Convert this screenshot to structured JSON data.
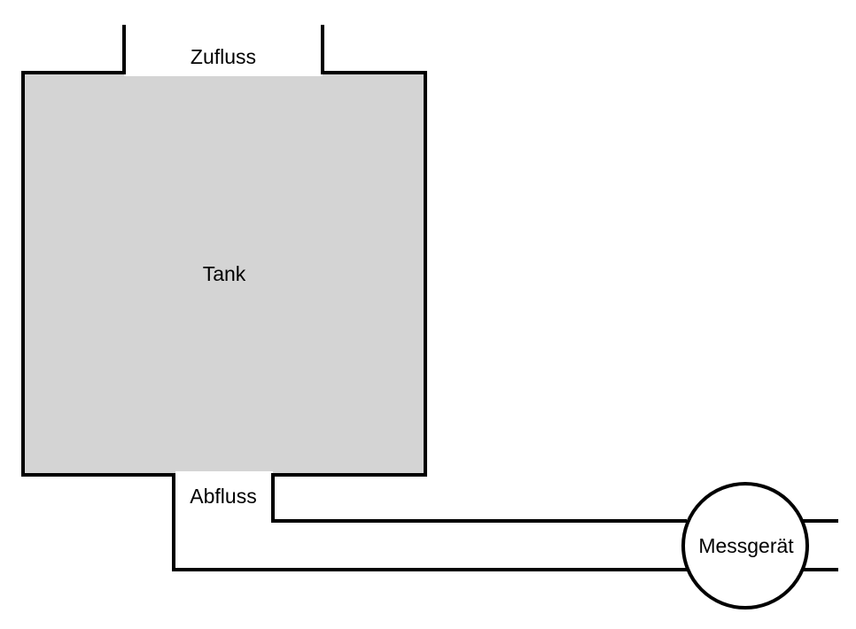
{
  "labels": {
    "inflow": "Zufluss",
    "tank": "Tank",
    "outflow": "Abfluss",
    "meter": "Messgerät"
  },
  "colors": {
    "tank_fill": "#d4d4d4",
    "stroke": "#000000",
    "background": "#ffffff"
  }
}
